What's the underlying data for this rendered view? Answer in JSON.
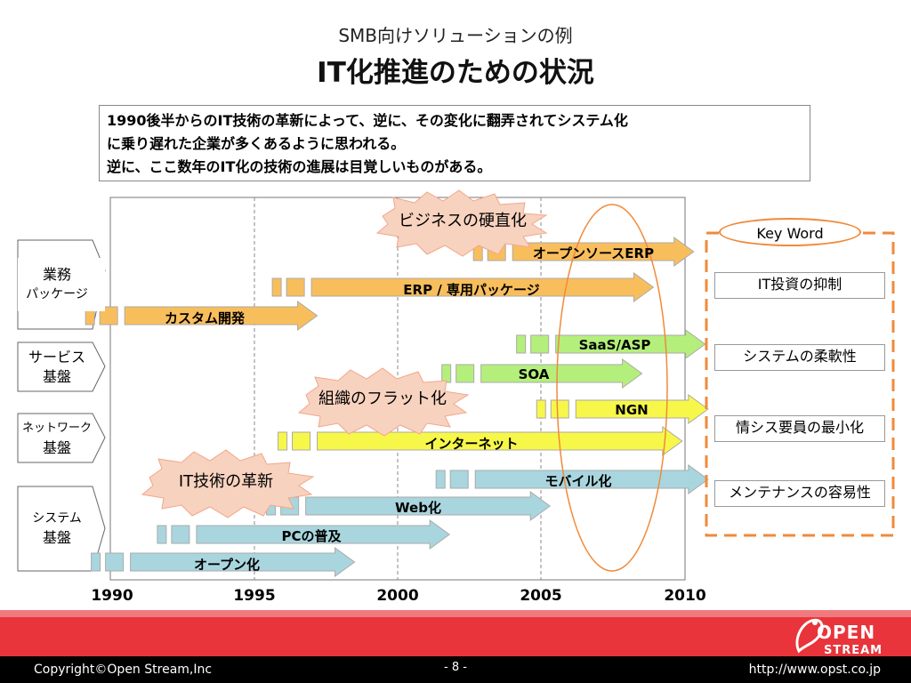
{
  "header": {
    "subtitle": "SMB向けソリューションの例",
    "title": "IT化推進のための状況"
  },
  "note": {
    "lines": [
      "1990後半からのIT技術の革新によって、逆に、その変化に翻弄されてシステム化",
      "に乗り遅れた企業が多くあるように思われる。",
      "逆に、ここ数年のIT化の技術の進展は目覚しいものがある。"
    ]
  },
  "categories": [
    {
      "label_line1": "業務",
      "label_line2": "パッケージ"
    },
    {
      "label_line1": "サービス",
      "label_line2": "基盤"
    },
    {
      "label_line1": "ネットワーク",
      "label_line2": "基盤"
    },
    {
      "label_line1": "システム",
      "label_line2": "基盤"
    }
  ],
  "timeline": {
    "years": [
      "1990",
      "1995",
      "2000",
      "2005",
      "2010"
    ],
    "year_range": [
      1990,
      2010
    ]
  },
  "arrows": [
    {
      "label": "オープンソースERP",
      "color": "#f9be5c",
      "start": 2004.0,
      "end": 2010.3
    },
    {
      "label": "ERP / 専用パッケージ",
      "color": "#f9be5c",
      "start": 1997.0,
      "end": 2008.9
    },
    {
      "label": "カスタム開発",
      "color": "#f9be5c",
      "start": 1990.5,
      "end": 1997.2
    },
    {
      "label": "SaaS/ASP",
      "color": "#b4ef7c",
      "start": 2005.5,
      "end": 2010.7
    },
    {
      "label": "SOA",
      "color": "#b4ef7c",
      "start": 2002.9,
      "end": 2008.5
    },
    {
      "label": "NGN",
      "color": "#f7f74a",
      "start": 2006.2,
      "end": 2010.8
    },
    {
      "label": "インターネット",
      "color": "#f7f74a",
      "start": 1997.2,
      "end": 2009.9
    },
    {
      "label": "モバイル化",
      "color": "#a9d6de",
      "start": 2002.7,
      "end": 2010.8
    },
    {
      "label": "Web化",
      "color": "#a9d6de",
      "start": 1996.8,
      "end": 2005.3
    },
    {
      "label": "PCの普及",
      "color": "#a9d6de",
      "start": 1993.0,
      "end": 2001.8
    },
    {
      "label": "オープン化",
      "color": "#a9d6de",
      "start": 1990.7,
      "end": 1998.5
    }
  ],
  "bursts": [
    {
      "label": "ビジネスの硬直化"
    },
    {
      "label": "組織のフラット化"
    },
    {
      "label": "IT技術の革新"
    }
  ],
  "keywords": {
    "title": "Key Word",
    "items": [
      "IT投資の抑制",
      "システムの柔軟性",
      "情シス要員の最小化",
      "メンテナンスの容易性"
    ]
  },
  "footer": {
    "copyright": "Copyright©Open Stream,Inc",
    "page": "- 8 -",
    "url": "http://www.opst.co.jp",
    "logo_line1": "OPEN",
    "logo_line2": "STREAM"
  },
  "colors": {
    "orange_arrow": "#f9be5c",
    "green_arrow": "#b4ef7c",
    "yellow_arrow": "#f7f74a",
    "blue_arrow": "#a9d6de",
    "highlight_ellipse": "#f08a3a",
    "footer_red": "#e8343a"
  }
}
